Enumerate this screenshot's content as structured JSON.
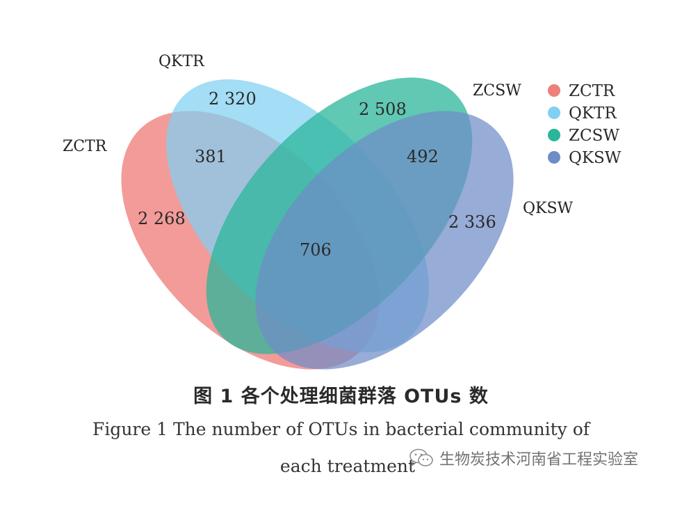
{
  "sets": [
    {
      "key": "ZCTR",
      "label": "ZCTR",
      "color": "#ee7f7b"
    },
    {
      "key": "QKTR",
      "label": "QKTR",
      "color": "#7fd0f3"
    },
    {
      "key": "ZCSW",
      "label": "ZCSW",
      "color": "#2bb59a"
    },
    {
      "key": "QKSW",
      "label": "QKSW",
      "color": "#6f8cc7"
    }
  ],
  "legend": [
    {
      "label": "ZCTR",
      "color": "#ee7f7b"
    },
    {
      "label": "QKTR",
      "color": "#7fd0f3"
    },
    {
      "label": "ZCSW",
      "color": "#2bb59a"
    },
    {
      "label": "QKSW",
      "color": "#6f8cc7"
    }
  ],
  "counts": {
    "zctr_only": "2 268",
    "qktr_only": "2 320",
    "zcsw_only": "2 508",
    "qksw_only": "2 336",
    "zctr_qktr": "381",
    "zcsw_qksw": "492",
    "all": "706"
  },
  "caption": {
    "cn": "图 1  各个处理细菌群落 OTUs 数",
    "en_line1": "Figure 1  The number of OTUs in bacterial community of",
    "en_line2": "each treatment"
  },
  "watermark": {
    "text": "生物炭技术河南省工程实验室",
    "icon": "wechat-icon"
  }
}
